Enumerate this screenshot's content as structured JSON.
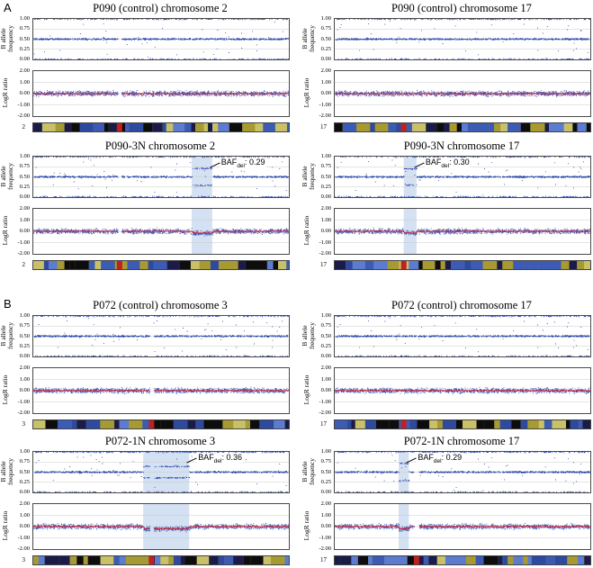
{
  "sections": [
    {
      "label": "A"
    },
    {
      "label": "B"
    }
  ],
  "colors": {
    "baf_points": "#2c48a8",
    "logr_points": "#3a58b8",
    "logr_mean": "#e0202a",
    "highlight": "#aac3e6",
    "grid": "#c8c8c8",
    "axis": "#1a2f99"
  },
  "ylabels": {
    "baf": [
      "B allele",
      "frequency"
    ],
    "logr": "LogR ratio"
  },
  "chart_data": [
    {
      "type": "scatter",
      "title": "P090 (control) chromosome 2",
      "chromosome_label": "2",
      "baf_ylim": [
        0,
        1
      ],
      "baf_ticks": [
        "1.00",
        "0.75",
        "0.50",
        "0.25",
        "0.00"
      ],
      "logr_ylim": [
        -2,
        2
      ],
      "logr_ticks": [
        "2.00",
        "1.00",
        "0.00",
        "-1.00",
        "-2.00"
      ],
      "baf_bands": [
        0.5
      ],
      "gap": [
        0.33,
        0.345
      ],
      "annotation": null
    },
    {
      "type": "scatter",
      "title": "P090 (control) chromosome 17",
      "chromosome_label": "17",
      "baf_ylim": [
        0,
        1
      ],
      "baf_ticks": [
        "1.00",
        "0.75",
        "0.50",
        "0.25",
        "0.00"
      ],
      "logr_ylim": [
        -2,
        2
      ],
      "logr_ticks": [
        "2.00",
        "1.00",
        "0.00",
        "-1.00",
        "-2.00"
      ],
      "baf_bands": [
        0.5
      ],
      "gap": null,
      "annotation": null
    },
    {
      "type": "scatter",
      "title": "P090-3N chromosome 2",
      "chromosome_label": "2",
      "baf_ylim": [
        0,
        1
      ],
      "baf_ticks": [
        "1.00",
        "0.75",
        "0.50",
        "0.25",
        "0.00"
      ],
      "logr_ylim": [
        -2,
        2
      ],
      "logr_ticks": [
        "2.00",
        "1.00",
        "0.00",
        "-1.00",
        "-2.00"
      ],
      "baf_bands": [
        0.5
      ],
      "gap": [
        0.33,
        0.345
      ],
      "region": [
        0.62,
        0.7
      ],
      "region_bands": [
        0.71,
        0.29
      ],
      "region_logr": -0.15,
      "annotation": {
        "prefix": "BAF",
        "sub": "del",
        "value": ": 0.29"
      }
    },
    {
      "type": "scatter",
      "title": "P090-3N chromosome 17",
      "chromosome_label": "17",
      "baf_ylim": [
        0,
        1
      ],
      "baf_ticks": [
        "1.00",
        "0.75",
        "0.50",
        "0.25",
        "0.00"
      ],
      "logr_ylim": [
        -2,
        2
      ],
      "logr_ticks": [
        "2.00",
        "1.00",
        "0.00",
        "-1.00",
        "-2.00"
      ],
      "baf_bands": [
        0.5
      ],
      "gap": null,
      "region": [
        0.27,
        0.32
      ],
      "region_bands": [
        0.7,
        0.3
      ],
      "region_logr": -0.15,
      "annotation": {
        "prefix": "BAF",
        "sub": "del",
        "value": ": 0.30"
      }
    },
    {
      "type": "scatter",
      "title": "P072 (control) chromosome 3",
      "chromosome_label": "3",
      "baf_ylim": [
        0,
        1
      ],
      "baf_ticks": [
        "1.00",
        "0.75",
        "0.50",
        "0.25",
        "0.00"
      ],
      "logr_ylim": [
        -2,
        2
      ],
      "logr_ticks": [
        "2.00",
        "1.00",
        "0.00",
        "-1.00",
        "-2.00"
      ],
      "baf_bands": [
        0.5
      ],
      "gap": [
        0.455,
        0.47
      ],
      "annotation": null
    },
    {
      "type": "scatter",
      "title": "P072 (control) chromosome 17",
      "chromosome_label": "17",
      "baf_ylim": [
        0,
        1
      ],
      "baf_ticks": [
        "1.00",
        "0.75",
        "0.50",
        "0.25",
        "0.00"
      ],
      "logr_ylim": [
        -2,
        2
      ],
      "logr_ticks": [
        "2.00",
        "1.00",
        "0.00",
        "-1.00",
        "-2.00"
      ],
      "baf_bands": [
        0.5
      ],
      "gap": null,
      "annotation": null
    },
    {
      "type": "scatter",
      "title": "P072-1N chromosome 3",
      "chromosome_label": "3",
      "baf_ylim": [
        0,
        1
      ],
      "baf_ticks": [
        "1.00",
        "0.75",
        "0.50",
        "0.25",
        "0.00"
      ],
      "logr_ylim": [
        -2,
        2
      ],
      "logr_ticks": [
        "2.00",
        "1.00",
        "0.00",
        "-1.00",
        "-2.00"
      ],
      "baf_bands": [
        0.5
      ],
      "gap": [
        0.455,
        0.47
      ],
      "region": [
        0.43,
        0.61
      ],
      "region_bands": [
        0.64,
        0.36
      ],
      "region_logr": -0.2,
      "annotation": {
        "prefix": "BAF",
        "sub": "del",
        "value": ": 0.36"
      }
    },
    {
      "type": "scatter",
      "title": "P072-1N chromosome 17",
      "chromosome_label": "17",
      "baf_ylim": [
        0,
        1
      ],
      "baf_ticks": [
        "1.00",
        "0.75",
        "0.50",
        "0.25",
        "0.00"
      ],
      "logr_ylim": [
        -2,
        2
      ],
      "logr_ticks": [
        "2.00",
        "1.00",
        "0.00",
        "-1.00",
        "-2.00"
      ],
      "baf_bands": [
        0.5
      ],
      "gap": [
        0.31,
        0.33
      ],
      "region": [
        0.25,
        0.29
      ],
      "region_bands": [
        0.71,
        0.29
      ],
      "region_logr": -0.2,
      "annotation": {
        "prefix": "BAF",
        "sub": "del",
        "value": ": 0.29"
      }
    }
  ]
}
